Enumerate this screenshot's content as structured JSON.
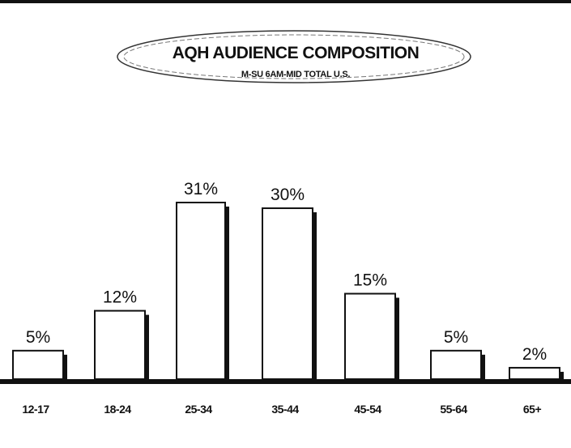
{
  "chart_data": {
    "type": "bar",
    "title": "AQH AUDIENCE COMPOSITION",
    "subtitle": "M-SU 6AM-MID TOTAL U.S.",
    "categories": [
      "12-17",
      "18-24",
      "25-34",
      "35-44",
      "45-54",
      "55-64",
      "65+"
    ],
    "values": [
      5,
      12,
      31,
      30,
      15,
      5,
      2
    ],
    "data_labels": [
      "5%",
      "12%",
      "31%",
      "30%",
      "15%",
      "5%",
      "2%"
    ],
    "unit": "%",
    "ylim": [
      0,
      31
    ],
    "grid": false,
    "legend": "none",
    "bar_fill": "#ffffff",
    "bar_shadow": "#111111",
    "axis_color": "#111111"
  }
}
